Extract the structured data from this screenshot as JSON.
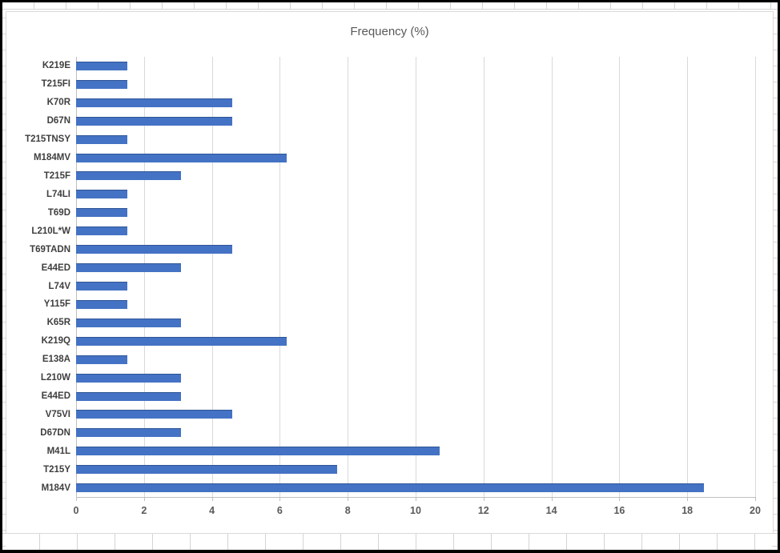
{
  "chart_data": {
    "type": "bar",
    "orientation": "horizontal",
    "title": "Frequency (%)",
    "categories": [
      "K219E",
      "T215FI",
      "K70R",
      "D67N",
      "T215TNSY",
      "M184MV",
      "T215F",
      "L74LI",
      "T69D",
      "L210L*W",
      "T69TADN",
      "E44ED",
      "L74V",
      "Y115F",
      "K65R",
      "K219Q",
      "E138A",
      "L210W",
      "E44ED",
      "V75VI",
      "D67DN",
      "M41L",
      "T215Y",
      "M184V"
    ],
    "values": [
      1.5,
      1.5,
      4.6,
      4.6,
      1.5,
      6.2,
      3.1,
      1.5,
      1.5,
      1.5,
      4.6,
      3.1,
      1.5,
      1.5,
      3.1,
      6.2,
      1.5,
      3.1,
      3.1,
      4.6,
      3.1,
      10.7,
      7.7,
      18.5
    ],
    "xlabel": "",
    "ylabel": "",
    "xlim": [
      0,
      20
    ],
    "xticks": [
      0,
      2,
      4,
      6,
      8,
      10,
      12,
      14,
      16,
      18,
      20
    ],
    "grid": "vertical-gridlines-on",
    "legend": "none",
    "bar_color": "#4472c4",
    "gridline_color": "#d9d9d9",
    "axis_line_color": "#bfbfbf",
    "title_color": "#595959",
    "tick_label_color": "#595959",
    "category_label_color": "#3f3f3f"
  },
  "sheet": {
    "description": "empty spreadsheet cells visible around chart object edges"
  }
}
